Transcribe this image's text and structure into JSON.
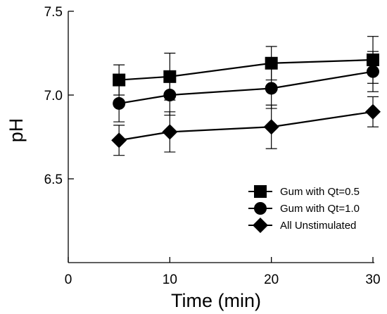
{
  "chart_data": {
    "type": "line",
    "xlabel": "Time (min)",
    "ylabel": "pH",
    "xlim": [
      0,
      30
    ],
    "ylim": [
      6.0,
      7.5
    ],
    "x_ticks": [
      0,
      10,
      20,
      30
    ],
    "x_tick_labels": [
      "0",
      "10",
      "20",
      "30"
    ],
    "y_ticks": [
      6.5,
      7.0,
      7.5
    ],
    "y_tick_labels": [
      "6.5",
      "7.0",
      "7.5"
    ],
    "grid": false,
    "legend_position": "bottom-right",
    "x": [
      5,
      10,
      20,
      30
    ],
    "series": [
      {
        "name": "Gum with Qt=0.5",
        "marker": "square",
        "values": [
          7.09,
          7.11,
          7.19,
          7.21
        ],
        "error": [
          0.09,
          0.14,
          0.1,
          0.14
        ]
      },
      {
        "name": "Gum with Qt=1.0",
        "marker": "circle",
        "values": [
          6.95,
          7.0,
          7.04,
          7.14
        ],
        "error": [
          0.11,
          0.12,
          0.12,
          0.12
        ]
      },
      {
        "name": "All Unstimulated",
        "marker": "diamond",
        "values": [
          6.73,
          6.78,
          6.81,
          6.9
        ],
        "error": [
          0.09,
          0.12,
          0.13,
          0.09
        ]
      }
    ]
  }
}
